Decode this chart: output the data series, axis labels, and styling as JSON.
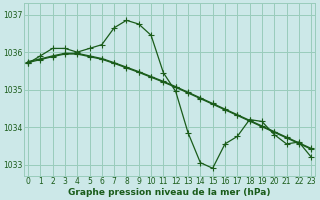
{
  "xlabel": "Graphe pression niveau de la mer (hPa)",
  "background_color": "#cce8e8",
  "grid_color": "#99ccbb",
  "line_color": "#1a5c1a",
  "ylim": [
    1032.7,
    1037.3
  ],
  "xlim": [
    -0.3,
    23.3
  ],
  "yticks": [
    1033,
    1034,
    1035,
    1036,
    1037
  ],
  "xticks": [
    0,
    1,
    2,
    3,
    4,
    5,
    6,
    7,
    8,
    9,
    10,
    11,
    12,
    13,
    14,
    15,
    16,
    17,
    18,
    19,
    20,
    21,
    22,
    23
  ],
  "series1": [
    1035.7,
    1035.9,
    1036.1,
    1036.1,
    1036.0,
    1036.1,
    1036.2,
    1036.65,
    1036.85,
    1036.75,
    1036.45,
    1035.45,
    1034.95,
    1033.85,
    1033.05,
    1032.9,
    1033.55,
    1033.75,
    1034.2,
    1034.15,
    1033.8,
    1033.55,
    1033.6,
    1033.2
  ],
  "series2": [
    1035.75,
    1035.82,
    1035.9,
    1035.97,
    1035.97,
    1035.9,
    1035.83,
    1035.72,
    1035.6,
    1035.48,
    1035.35,
    1035.22,
    1035.08,
    1034.93,
    1034.78,
    1034.63,
    1034.48,
    1034.33,
    1034.18,
    1034.03,
    1033.88,
    1033.73,
    1033.58,
    1033.43
  ],
  "series3": [
    1035.72,
    1035.8,
    1035.88,
    1035.95,
    1035.95,
    1035.88,
    1035.81,
    1035.7,
    1035.58,
    1035.46,
    1035.33,
    1035.2,
    1035.06,
    1034.91,
    1034.76,
    1034.61,
    1034.46,
    1034.31,
    1034.16,
    1034.01,
    1033.86,
    1033.71,
    1033.56,
    1033.41
  ],
  "tick_fontsize": 5.5,
  "xlabel_fontsize": 6.5,
  "marker_size": 2.2,
  "line_width": 0.9
}
